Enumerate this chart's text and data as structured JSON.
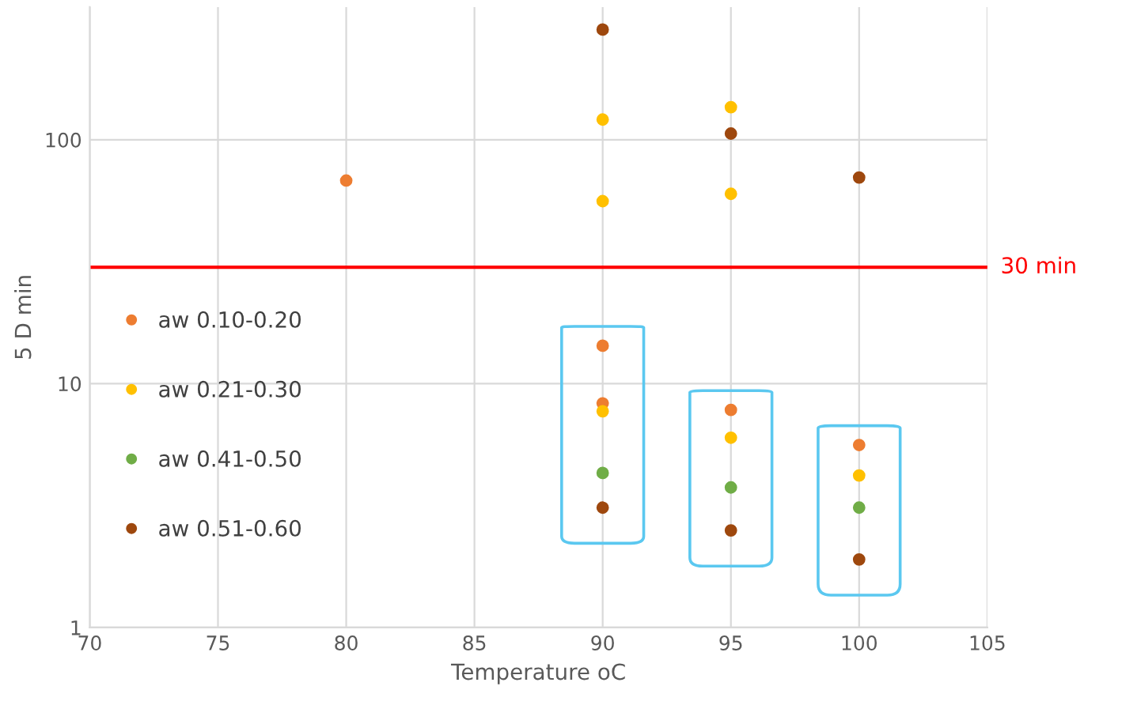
{
  "chart_data": {
    "type": "scatter",
    "xlabel": "Temperature oC",
    "ylabel": "5 D min",
    "xlim": [
      70,
      105
    ],
    "xticks": [
      70,
      75,
      80,
      85,
      90,
      95,
      100,
      105
    ],
    "ylim": [
      1,
      350
    ],
    "yticks": [
      1,
      10,
      100
    ],
    "log": "y",
    "grid": true,
    "legend": "left",
    "marker": "circle",
    "series": [
      {
        "name": "aw 0.10-0.20",
        "color": "#ed7d31",
        "x": [
          80,
          90,
          90,
          95,
          100
        ],
        "values": [
          68,
          14.3,
          8.3,
          7.8,
          5.6
        ]
      },
      {
        "name": "aw 0.21-0.30",
        "color": "#ffc000",
        "x": [
          90,
          90,
          90,
          95,
          95,
          95,
          100
        ],
        "values": [
          121,
          56,
          7.7,
          136,
          60,
          6.0,
          4.2
        ]
      },
      {
        "name": "aw 0.41-0.50",
        "color": "#70ad47",
        "x": [
          90,
          95,
          100
        ],
        "values": [
          4.3,
          3.75,
          3.1
        ]
      },
      {
        "name": "aw 0.51-0.60",
        "color": "#9e480e",
        "x": [
          90,
          90,
          95,
          95,
          100,
          100
        ],
        "values": [
          283,
          3.1,
          106,
          2.5,
          70,
          1.9
        ]
      }
    ],
    "ref_lines": [
      {
        "axis": "y",
        "value": 30,
        "label": "30 min",
        "color": "#ff0000",
        "line_style": "solid"
      }
    ]
  }
}
